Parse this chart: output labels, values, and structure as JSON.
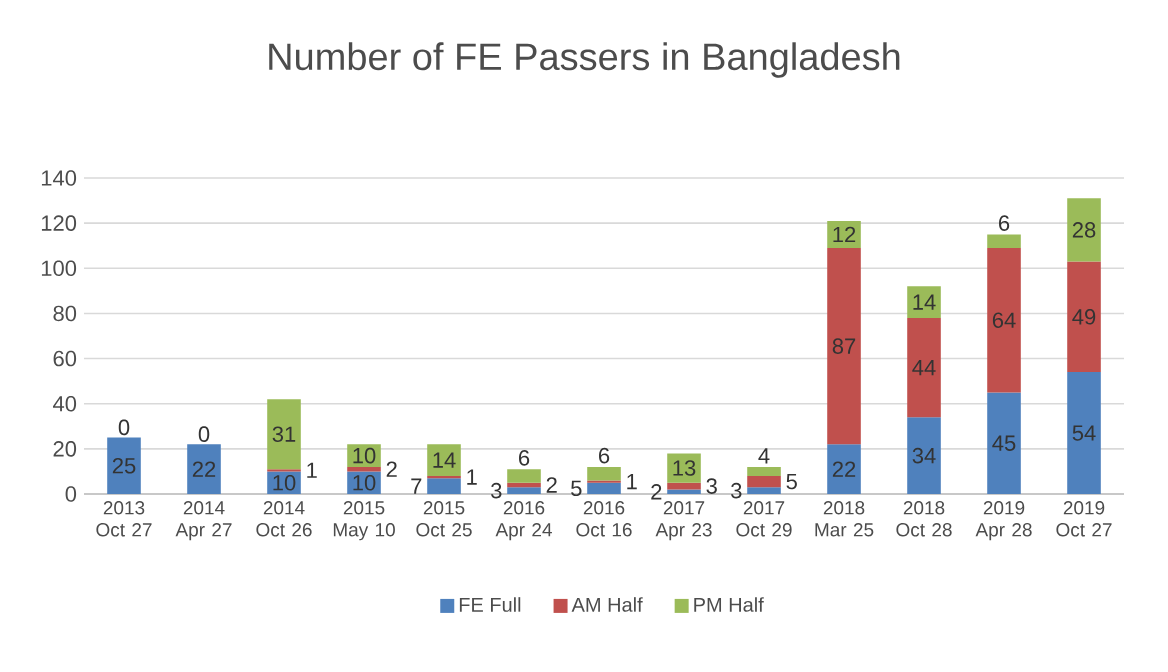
{
  "chart_data": {
    "type": "bar",
    "stacked": true,
    "title": "Number of FE Passers in Bangladesh",
    "categories": [
      "2013 Oct 27",
      "2014 Apr 27",
      "2014 Oct 26",
      "2015 May 10",
      "2015 Oct 25",
      "2016 Apr 24",
      "2016 Oct 16",
      "2017 Apr 23",
      "2017 Oct 29",
      "2018 Mar 25",
      "2018 Oct 28",
      "2019 Apr 28",
      "2019 Oct 27"
    ],
    "series": [
      {
        "name": "FE Full",
        "color": "#4f81bd",
        "values": [
          25,
          22,
          10,
          10,
          7,
          3,
          5,
          2,
          3,
          22,
          34,
          45,
          54
        ]
      },
      {
        "name": "AM Half",
        "color": "#c0504d",
        "values": [
          0,
          0,
          1,
          2,
          1,
          2,
          1,
          3,
          5,
          87,
          44,
          64,
          49
        ]
      },
      {
        "name": "PM Half",
        "color": "#9bbb59",
        "values": [
          null,
          null,
          31,
          10,
          14,
          6,
          6,
          13,
          4,
          12,
          14,
          6,
          28
        ]
      }
    ],
    "ylim": [
      0,
      140
    ],
    "yticks": [
      0,
      20,
      40,
      60,
      80,
      100,
      120,
      140
    ],
    "grid": "y",
    "legend": "bottom",
    "data_labels": true
  }
}
